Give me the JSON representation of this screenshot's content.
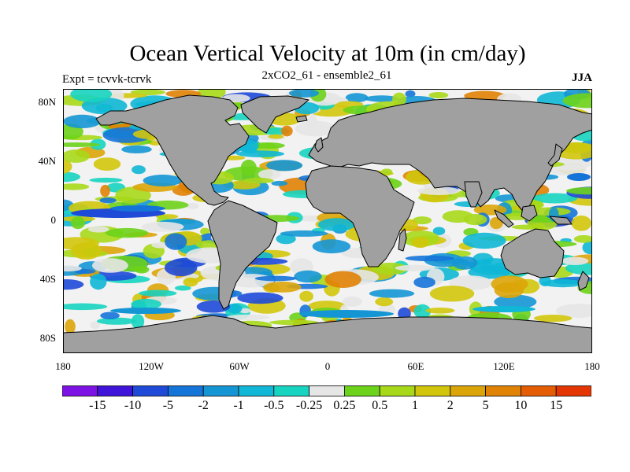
{
  "title": "Ocean Vertical Velocity at 10m (in cm/day)",
  "subtitle": "2xCO2_61 - ensemble2_61",
  "experiment_label": "Expt = tcvvk-tcrvk",
  "season": "JJA",
  "lat_ticks": [
    "80N",
    "40N",
    "0",
    "40S",
    "80S"
  ],
  "lon_ticks": [
    "180",
    "120W",
    "60W",
    "0",
    "60E",
    "120E",
    "180"
  ],
  "colorbar": {
    "labels": [
      "-15",
      "-10",
      "-5",
      "-2",
      "-1",
      "-0.5",
      "-0.25",
      "0.25",
      "0.5",
      "1",
      "2",
      "5",
      "10",
      "15"
    ],
    "colors": [
      "#7d12e4",
      "#3f14d8",
      "#1f4ad8",
      "#1574d8",
      "#1596d4",
      "#10b7d6",
      "#17d4c0",
      "#e6e6e6",
      "#6dd31a",
      "#a8d81a",
      "#d2c60c",
      "#dba509",
      "#e08204",
      "#e45c04",
      "#e43604"
    ]
  },
  "land_color": "#a0a0a0"
}
